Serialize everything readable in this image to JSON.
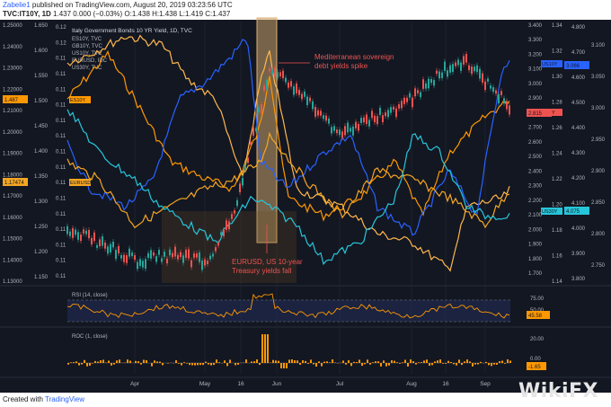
{
  "header": {
    "user": "Zabelie1",
    "published_text": "published on TradingView.com, August 20, 2019 03:23:56 UTC",
    "symbol_line": "TVC:IT10Y, 1D",
    "ohlc": "1.437 0.000 (−0.03%) O:1.438 H:1.438 L:1.419 C:1.437"
  },
  "footer": {
    "created_with": "Created with",
    "brand": "TradingView",
    "watermark": "WikiFX"
  },
  "chart_data": [
    {
      "type": "line",
      "title": "Italy Government Bonds 10 YR Yield, 1D, TVC",
      "x": [
        "Apr",
        "May",
        "16",
        "Jun",
        "Jul",
        "Aug",
        "16",
        "Sep"
      ],
      "series": [
        {
          "name": "ES10Y, TVC",
          "color": "#ff9800",
          "last_label": "ES10Y",
          "last_value": "1.487"
        },
        {
          "name": "GB10Y, TVC",
          "color": "#ffb74d",
          "last_label": "",
          "last_value": ""
        },
        {
          "name": "US10Y, TVC",
          "color": "#2962ff",
          "last_label": "US10Y",
          "last_value": "3.066"
        },
        {
          "name": "EURUSD, IDC",
          "color": "#f5a623",
          "last_label": "EURUSD",
          "last_value": "1.17474"
        },
        {
          "name": "US30Y, TVC",
          "color": "#26c6da",
          "last_label": "US30Y",
          "last_value": "4.075"
        },
        {
          "name": "IT10Y",
          "color": "#ef5350",
          "last_label": "IT10Y",
          "last_value": "2.815"
        }
      ],
      "axes": {
        "left_outer": [
          "1.25000",
          "1.24000",
          "1.23000",
          "1.22000",
          "1.21000",
          "1.20000",
          "1.19000",
          "1.18000",
          "1.17000",
          "1.16000",
          "1.15000",
          "1.14000",
          "1.13000"
        ],
        "left_mid": [
          "1.650",
          "1.600",
          "1.550",
          "1.500",
          "1.450",
          "1.400",
          "1.350",
          "1.300",
          "1.250",
          "1.200",
          "1.150"
        ],
        "left_inner": [
          "0.12",
          "0.12",
          "0.11",
          "0.11",
          "0.11",
          "0.11",
          "0.11",
          "0.11",
          "0.11",
          "0.11",
          "0.11",
          "0.11",
          "0.11",
          "0.11",
          "0.11",
          "0.11",
          "0.11"
        ],
        "right_1": [
          "3.400",
          "3.300",
          "3.200",
          "3.100",
          "3.000",
          "2.900",
          "2.800",
          "2.700",
          "2.600",
          "2.500",
          "2.400",
          "2.300",
          "2.200",
          "2.100",
          "2.000",
          "1.900",
          "1.800",
          "1.700"
        ],
        "right_2": [
          "1.34",
          "1.32",
          "1.30",
          "1.28",
          "1.26",
          "1.24",
          "1.22",
          "1.20",
          "1.18",
          "1.16",
          "1.14"
        ],
        "right_3": [
          "4.800",
          "4.700",
          "4.600",
          "4.500",
          "4.400",
          "4.300",
          "4.200",
          "4.100",
          "4.000",
          "3.900",
          "3.800"
        ],
        "right_4": [
          "3.100",
          "3.050",
          "3.000",
          "2.950",
          "2.900",
          "2.850",
          "2.800",
          "2.750"
        ]
      },
      "annotations": [
        {
          "text": "Mediterranean sovereign debt yields spike"
        },
        {
          "text": "EURUSD, US 10-year Treasury yields fall"
        }
      ]
    },
    {
      "type": "line",
      "title": "RSI (14, close)",
      "ticks": [
        "75.00",
        "50.00"
      ],
      "last_value": "45.58",
      "band": [
        30,
        70
      ]
    },
    {
      "type": "bar",
      "title": "ROC (1, close)",
      "ticks": [
        "20.00",
        "0.00"
      ],
      "last_value": "-1.65"
    }
  ]
}
